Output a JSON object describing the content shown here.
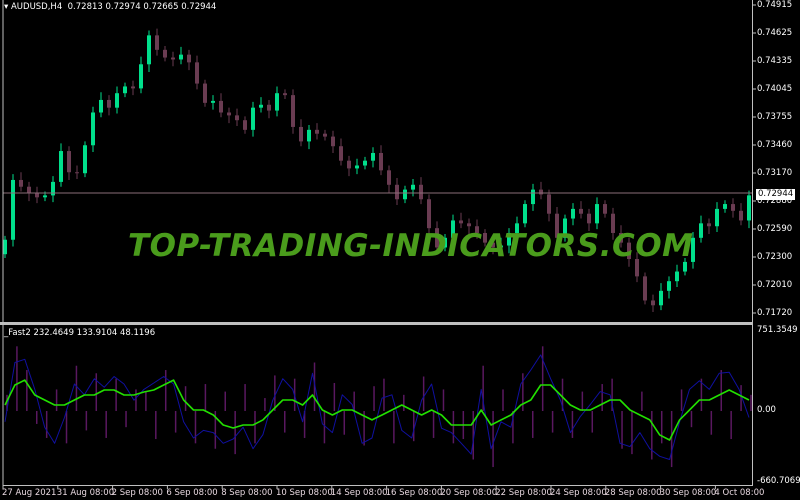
{
  "chart": {
    "symbol_label": "AUDUSD,H4",
    "ohlc_label": "0.72813 0.72974 0.72665 0.72944",
    "current_price": "0.72944",
    "colors": {
      "bull": "#00e08c",
      "bear": "#6a3c52",
      "grid_line": "#8a6e78",
      "axis": "#c0c0c0"
    },
    "price_axis": [
      "0.74915",
      "0.74625",
      "0.74335",
      "0.74045",
      "0.73755",
      "0.73460",
      "0.73170",
      "0.72880",
      "0.72590",
      "0.72300",
      "0.72010",
      "0.71720"
    ],
    "time_axis": [
      "27 Aug 2021",
      "31 Aug 08:00",
      "2 Sep 08:00",
      "6 Sep 08:00",
      "8 Sep 08:00",
      "10 Sep 08:00",
      "14 Sep 08:00",
      "16 Sep 08:00",
      "20 Sep 08:00",
      "22 Sep 08:00",
      "24 Sep 08:00",
      "28 Sep 08:00",
      "30 Sep 08:00",
      "4 Oct 08:00"
    ],
    "closes": [
      0.7248,
      0.731,
      0.7303,
      0.7296,
      0.7292,
      0.7294,
      0.7308,
      0.734,
      0.7318,
      0.7317,
      0.7346,
      0.738,
      0.7393,
      0.7385,
      0.74,
      0.7407,
      0.7405,
      0.743,
      0.746,
      0.7445,
      0.7437,
      0.7435,
      0.744,
      0.7432,
      0.741,
      0.739,
      0.7392,
      0.738,
      0.7377,
      0.7372,
      0.7362,
      0.7385,
      0.7388,
      0.7382,
      0.74,
      0.7398,
      0.7365,
      0.735,
      0.7362,
      0.7358,
      0.7355,
      0.7345,
      0.733,
      0.7322,
      0.7325,
      0.733,
      0.7338,
      0.732,
      0.7305,
      0.729,
      0.73,
      0.7305,
      0.729,
      0.726,
      0.724,
      0.725,
      0.7268,
      0.7265,
      0.7262,
      0.7255,
      0.7245,
      0.724,
      0.7242,
      0.7255,
      0.7265,
      0.7285,
      0.73,
      0.7295,
      0.7275,
      0.725,
      0.727,
      0.728,
      0.7275,
      0.7265,
      0.7285,
      0.7275,
      0.7255,
      0.7245,
      0.7228,
      0.721,
      0.7185,
      0.718,
      0.7195,
      0.7205,
      0.7215,
      0.7225,
      0.725,
      0.7265,
      0.7262,
      0.728,
      0.7285,
      0.7278,
      0.7268,
      0.7294
    ]
  },
  "watermark": "TOP-TRADING-INDICATORS.COM",
  "indicator": {
    "label": "_Fast2 232.4649 133.9104 48.1196",
    "axis_max": "751.3549",
    "axis_zero": "0.00",
    "axis_min": "-660.7069",
    "colors": {
      "signal": "#22e000",
      "main": "#1010a0",
      "histogram": "#5a1860"
    },
    "signal": [
      56,
      241,
      287,
      148,
      102,
      56,
      56,
      102,
      148,
      148,
      195,
      195,
      148,
      148,
      176,
      195,
      241,
      287,
      102,
      9,
      9,
      -37,
      -130,
      -158,
      -130,
      -130,
      -83,
      9,
      102,
      102,
      56,
      148,
      9,
      -37,
      9,
      9,
      -37,
      -83,
      -37,
      9,
      56,
      9,
      -37,
      9,
      -37,
      -130,
      -130,
      -130,
      9,
      -130,
      -83,
      -37,
      56,
      102,
      241,
      241,
      148,
      56,
      9,
      9,
      56,
      102,
      102,
      9,
      -37,
      -83,
      -222,
      -269,
      -83,
      9,
      102,
      102,
      148,
      195,
      148,
      102
    ],
    "main": [
      -100,
      450,
      480,
      200,
      -150,
      -300,
      -60,
      250,
      150,
      300,
      220,
      320,
      250,
      100,
      200,
      260,
      320,
      250,
      -100,
      -250,
      -180,
      -200,
      -300,
      -260,
      -150,
      -350,
      -220,
      100,
      300,
      200,
      -100,
      350,
      -120,
      -200,
      150,
      60,
      -300,
      -250,
      120,
      150,
      -180,
      -250,
      100,
      250,
      -160,
      -200,
      -300,
      -400,
      200,
      -350,
      -100,
      -150,
      250,
      380,
      520,
      300,
      100,
      -200,
      -50,
      60,
      180,
      150,
      -300,
      -330,
      -200,
      -350,
      -420,
      -450,
      -100,
      200,
      280,
      200,
      350,
      360,
      200,
      -60
    ],
    "histogram": [
      150,
      600,
      380,
      -120,
      -250,
      200,
      -300,
      420,
      -180,
      350,
      -250,
      300,
      -150,
      200,
      180,
      -260,
      380,
      -200,
      230,
      -300,
      250,
      -350,
      180,
      -400,
      250,
      -300,
      120,
      330,
      -200,
      300,
      -250,
      450,
      -300,
      260,
      -220,
      180,
      -320,
      230,
      300,
      -300,
      150,
      -280,
      320,
      -250,
      200,
      -300,
      -260,
      -450,
      420,
      -520,
      200,
      -300,
      350,
      -250,
      600,
      -200,
      300,
      -250,
      180,
      -200,
      250,
      300,
      -350,
      -400,
      180,
      -450,
      -300,
      -520,
      200,
      -150,
      300,
      -220,
      380,
      -260,
      240,
      150
    ]
  }
}
